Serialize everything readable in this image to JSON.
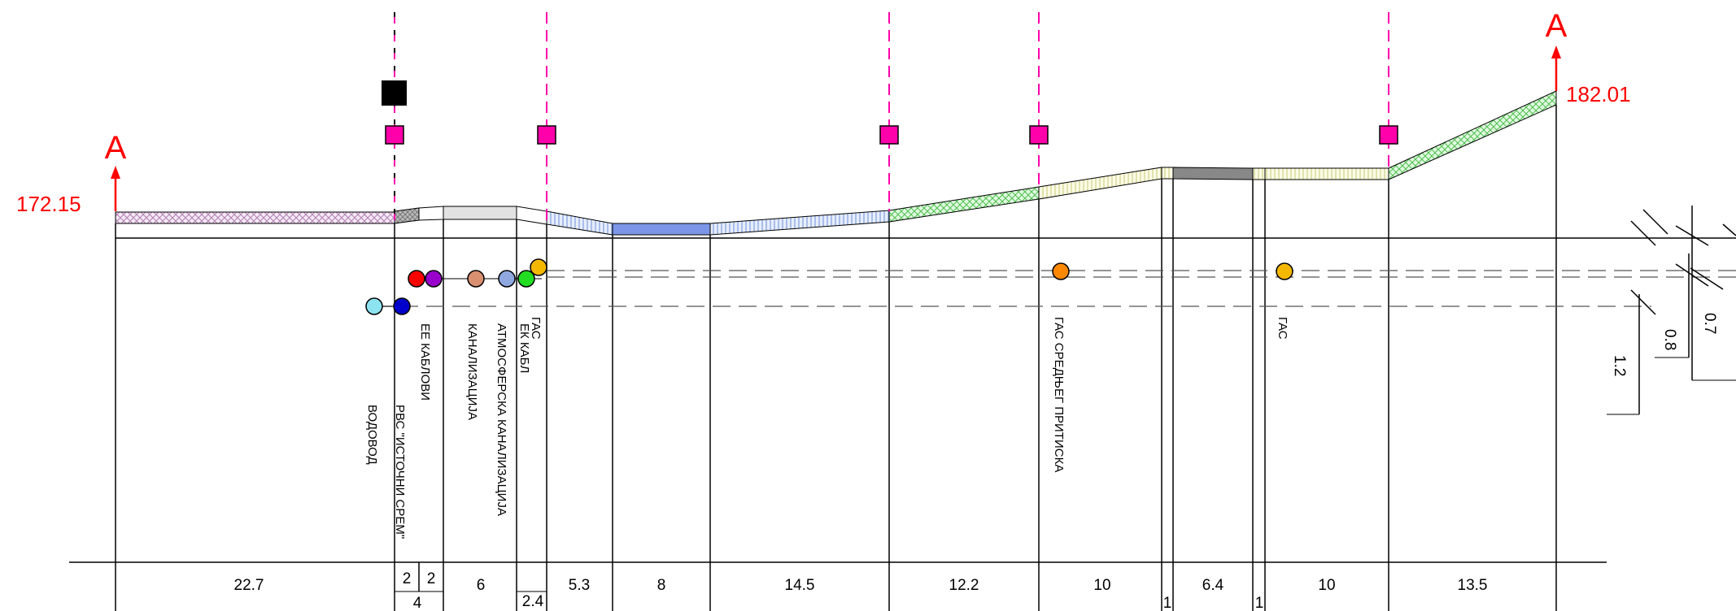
{
  "section": {
    "marker_left": "A",
    "marker_right": "A",
    "elevation_left": "172.15",
    "elevation_right": "182.01"
  },
  "utilities": {
    "vodovod": "ВОДОВОД",
    "rvs": "РВС \"ИСТОЧНИ СРЕМ\"",
    "ee_kablovi": "ЕЕ КАБЛОВИ",
    "kanalizacija": "КАНАЛИЗАЦИЈА",
    "atmosferska": "АТМОСФЕРСКА КАНАЛИЗАЦИЈА",
    "ek_kabl": "ЕК КАБЛ",
    "gas_1": "ГАС",
    "gas_srednjeg": "ГАС СРЕДЊЕГ ПРИТИСКА",
    "gas_2": "ГАС"
  },
  "depths": {
    "d07": "0.7",
    "d08": "0.8",
    "d12": "1.2"
  },
  "widths": {
    "w1": "22.7",
    "w2a": "2",
    "w2b": "2",
    "w2sum": "4",
    "w3": "6",
    "w4": "2.4",
    "w5": "5.3",
    "w6": "8",
    "w7": "14.5",
    "w8": "12.2",
    "w9": "10",
    "w10": "1",
    "w11": "6.4",
    "w12": "1",
    "w13": "10",
    "w14": "13.5"
  },
  "colors": {
    "accent_red": "#ff0000",
    "pole_magenta": "#ff00aa",
    "water_light": "#8ee3f0",
    "water_dark": "#0000cc",
    "ee_red": "#ff0000",
    "ee_purple": "#9900cc",
    "sewer": "#d99070",
    "storm": "#8fa8e0",
    "telecom": "#22dd22",
    "gas": "#f5b800",
    "gas_medium": "#ff8800"
  }
}
